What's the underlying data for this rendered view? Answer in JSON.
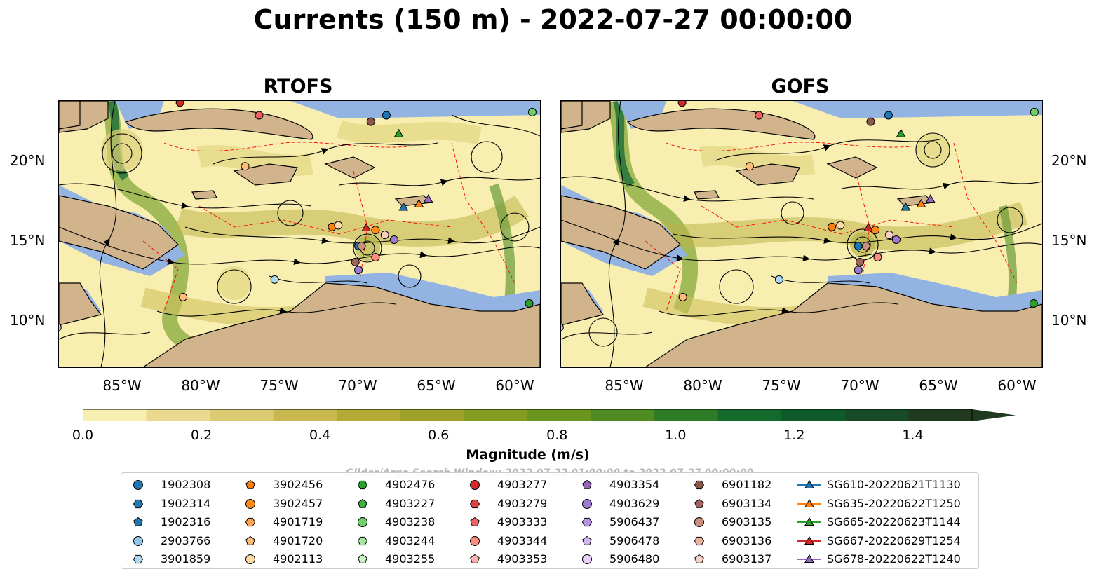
{
  "title": "Currents (150 m) - 2022-07-27 00:00:00",
  "panels": [
    {
      "title": "RTOFS"
    },
    {
      "title": "GOFS"
    }
  ],
  "latitude_labels": [
    "20°N",
    "15°N",
    "10°N"
  ],
  "longitude_labels": [
    "85°W",
    "80°W",
    "75°W",
    "70°W",
    "65°W",
    "60°W"
  ],
  "colorbar": {
    "label": "Magnitude (m/s)",
    "ticks": [
      "0.0",
      "0.2",
      "0.4",
      "0.6",
      "0.8",
      "1.0",
      "1.2",
      "1.4"
    ],
    "min": 0.0,
    "max": 1.5,
    "colors": [
      "#f7efb0",
      "#ead98f",
      "#dccb72",
      "#c9b84f",
      "#b4aa36",
      "#9ea12a",
      "#849c1f",
      "#6a951e",
      "#4f8a22",
      "#2e7b27",
      "#136a2b",
      "#0f5a2a",
      "#174a25",
      "#1f3a1f"
    ]
  },
  "search_window": "Glider/Argo Search Window: 2022-07-22 01:00:00 to 2022-07-27 00:00:00",
  "map_colors": {
    "land": "#d2b48c",
    "shallow": "#93b4e2",
    "track": "#ff0000"
  },
  "legend": [
    {
      "label": "1902308",
      "shape": "circle",
      "color": "#1f77b4"
    },
    {
      "label": "1902314",
      "shape": "hexagon",
      "color": "#1f77b4"
    },
    {
      "label": "1902316",
      "shape": "pentagon",
      "color": "#1f77b4"
    },
    {
      "label": "2903766",
      "shape": "circle",
      "color": "#8ec7ea"
    },
    {
      "label": "3901859",
      "shape": "hexagon",
      "color": "#aed8f2"
    },
    {
      "label": "3902456",
      "shape": "pentagon",
      "color": "#ff7f0e"
    },
    {
      "label": "3902457",
      "shape": "circle",
      "color": "#ff8c1a"
    },
    {
      "label": "4901719",
      "shape": "hexagon",
      "color": "#ffa54f"
    },
    {
      "label": "4901720",
      "shape": "pentagon",
      "color": "#ffbb78"
    },
    {
      "label": "4902113",
      "shape": "circle",
      "color": "#ffd9a8"
    },
    {
      "label": "4902476",
      "shape": "hexagon",
      "color": "#2ca02c"
    },
    {
      "label": "4903227",
      "shape": "pentagon",
      "color": "#3cb043"
    },
    {
      "label": "4903238",
      "shape": "circle",
      "color": "#6fcf6a"
    },
    {
      "label": "4903244",
      "shape": "hexagon",
      "color": "#a4e3a0"
    },
    {
      "label": "4903255",
      "shape": "pentagon",
      "color": "#c8f5c0"
    },
    {
      "label": "4903277",
      "shape": "circle",
      "color": "#d62728"
    },
    {
      "label": "4903279",
      "shape": "hexagon",
      "color": "#e04040"
    },
    {
      "label": "4903333",
      "shape": "pentagon",
      "color": "#f06060"
    },
    {
      "label": "4903344",
      "shape": "circle",
      "color": "#ff8a80"
    },
    {
      "label": "4903353",
      "shape": "pentagon",
      "color": "#ffb3ae"
    },
    {
      "label": "4903354",
      "shape": "pentagon",
      "color": "#9467bd"
    },
    {
      "label": "4903629",
      "shape": "circle",
      "color": "#9f7ad0"
    },
    {
      "label": "5906437",
      "shape": "hexagon",
      "color": "#b894e0"
    },
    {
      "label": "5906478",
      "shape": "pentagon",
      "color": "#d2b5f0"
    },
    {
      "label": "5906480",
      "shape": "circle",
      "color": "#e6d2fa"
    },
    {
      "label": "6901182",
      "shape": "hexagon",
      "color": "#8c564b"
    },
    {
      "label": "6903134",
      "shape": "pentagon",
      "color": "#a0645a"
    },
    {
      "label": "6903135",
      "shape": "circle",
      "color": "#c9907f"
    },
    {
      "label": "6903136",
      "shape": "hexagon",
      "color": "#e8b2a0"
    },
    {
      "label": "6903137",
      "shape": "pentagon",
      "color": "#f7cfc3"
    },
    {
      "label": "SG610-20220621T1130",
      "shape": "triangle-line",
      "color": "#1f77b4"
    },
    {
      "label": "SG635-20220622T1250",
      "shape": "triangle-line",
      "color": "#ff7f0e"
    },
    {
      "label": "SG665-20220623T1144",
      "shape": "triangle-line",
      "color": "#2ca02c"
    },
    {
      "label": "SG667-20220629T1254",
      "shape": "triangle-line",
      "color": "#d62728"
    },
    {
      "label": "SG678-20220622T1240",
      "shape": "triangle-line",
      "color": "#9467bd"
    }
  ],
  "floats_on_map": [
    {
      "lon": -69.7,
      "lat": 14.6,
      "color": "#1f77b4"
    },
    {
      "lon": -67.9,
      "lat": 22.8,
      "color": "#1f77b4"
    },
    {
      "lon": -75.1,
      "lat": 12.5,
      "color": "#aed8f2"
    },
    {
      "lon": -76.1,
      "lat": 22.8,
      "color": "#f06060"
    },
    {
      "lon": -81.2,
      "lat": 23.6,
      "color": "#d62728"
    },
    {
      "lon": -77.0,
      "lat": 19.6,
      "color": "#ffbb78"
    },
    {
      "lon": -68.9,
      "lat": 22.4,
      "color": "#8c564b"
    },
    {
      "lon": -58.5,
      "lat": 23.0,
      "color": "#6fcf6a"
    },
    {
      "lon": -58.7,
      "lat": 11.0,
      "color": "#2ca02c"
    },
    {
      "lon": -71.4,
      "lat": 15.8,
      "color": "#ff7f0e"
    },
    {
      "lon": -71.0,
      "lat": 15.9,
      "color": "#ffd9a8"
    },
    {
      "lon": -69.5,
      "lat": 14.6,
      "color": "#c9907f"
    },
    {
      "lon": -68.6,
      "lat": 15.6,
      "color": "#ff8c1a"
    },
    {
      "lon": -68.6,
      "lat": 13.9,
      "color": "#ff8a80"
    },
    {
      "lon": -69.9,
      "lat": 13.6,
      "color": "#a0645a"
    },
    {
      "lon": -69.7,
      "lat": 13.1,
      "color": "#9f7ad0"
    },
    {
      "lon": -67.4,
      "lat": 15.0,
      "color": "#9f7ad0"
    },
    {
      "lon": -68.0,
      "lat": 15.3,
      "color": "#f7cfc3"
    },
    {
      "lon": -81.0,
      "lat": 11.4,
      "color": "#ffbb78"
    },
    {
      "lon": -89.1,
      "lat": 9.5,
      "color": "#d2b5f0"
    }
  ],
  "gliders_on_map": [
    {
      "lon": -66.8,
      "lat": 17.0,
      "color": "#1f77b4"
    },
    {
      "lon": -65.8,
      "lat": 17.2,
      "color": "#ff7f0e"
    },
    {
      "lon": -67.1,
      "lat": 21.6,
      "color": "#2ca02c"
    },
    {
      "lon": -69.2,
      "lat": 15.7,
      "color": "#d62728"
    },
    {
      "lon": -65.2,
      "lat": 17.5,
      "color": "#9467bd"
    }
  ]
}
